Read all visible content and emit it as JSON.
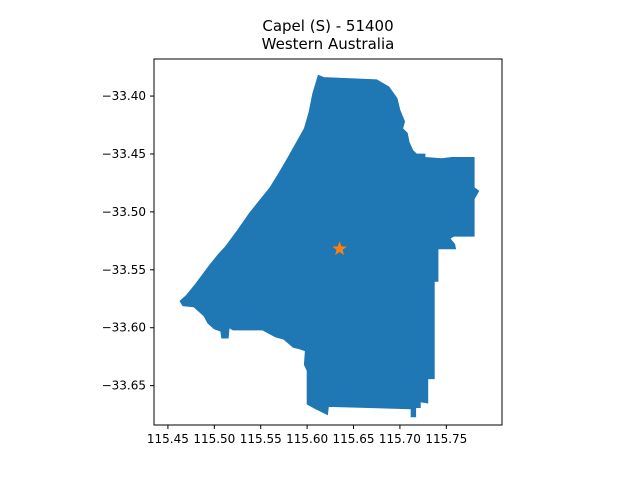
{
  "title": {
    "line1": "Capel (S) - 51400",
    "line2": "Western Australia"
  },
  "chart_data": {
    "type": "map",
    "region_color": "#1f77b4",
    "marker_color": "#ff7f0e",
    "marker_shape": "star",
    "marker_point": {
      "lon": 115.635,
      "lat": -33.532
    },
    "x_ticks": [
      {
        "value": 115.45,
        "label": "115.45"
      },
      {
        "value": 115.5,
        "label": "115.50"
      },
      {
        "value": 115.55,
        "label": "115.55"
      },
      {
        "value": 115.6,
        "label": "115.60"
      },
      {
        "value": 115.65,
        "label": "115.65"
      },
      {
        "value": 115.7,
        "label": "115.70"
      },
      {
        "value": 115.75,
        "label": "115.75"
      }
    ],
    "y_ticks": [
      {
        "value": -33.4,
        "label": "−33.40"
      },
      {
        "value": -33.45,
        "label": "−33.45"
      },
      {
        "value": -33.5,
        "label": "−33.50"
      },
      {
        "value": -33.55,
        "label": "−33.55"
      },
      {
        "value": -33.6,
        "label": "−33.60"
      },
      {
        "value": -33.65,
        "label": "−33.65"
      }
    ],
    "xlim": [
      115.435,
      115.81
    ],
    "ylim": [
      -33.684,
      -33.368
    ],
    "boundary": [
      [
        115.612,
        -33.382
      ],
      [
        115.618,
        -33.384
      ],
      [
        115.675,
        -33.386
      ],
      [
        115.688,
        -33.392
      ],
      [
        115.697,
        -33.402
      ],
      [
        115.7,
        -33.412
      ],
      [
        115.703,
        -33.418
      ],
      [
        115.705,
        -33.422
      ],
      [
        115.703,
        -33.428
      ],
      [
        115.708,
        -33.432
      ],
      [
        115.71,
        -33.44
      ],
      [
        115.714,
        -33.447
      ],
      [
        115.718,
        -33.45
      ],
      [
        115.727,
        -33.45
      ],
      [
        115.727,
        -33.453
      ],
      [
        115.745,
        -33.454
      ],
      [
        115.756,
        -33.453
      ],
      [
        115.78,
        -33.453
      ],
      [
        115.78,
        -33.479
      ],
      [
        115.785,
        -33.482
      ],
      [
        115.78,
        -33.489
      ],
      [
        115.78,
        -33.521
      ],
      [
        115.758,
        -33.521
      ],
      [
        115.754,
        -33.523
      ],
      [
        115.759,
        -33.528
      ],
      [
        115.76,
        -33.532
      ],
      [
        115.741,
        -33.532
      ],
      [
        115.741,
        -33.56
      ],
      [
        115.737,
        -33.56
      ],
      [
        115.737,
        -33.644
      ],
      [
        115.73,
        -33.644
      ],
      [
        115.73,
        -33.665
      ],
      [
        115.722,
        -33.664
      ],
      [
        115.722,
        -33.669
      ],
      [
        115.717,
        -33.669
      ],
      [
        115.717,
        -33.677
      ],
      [
        115.712,
        -33.677
      ],
      [
        115.712,
        -33.67
      ],
      [
        115.623,
        -33.668
      ],
      [
        115.622,
        -33.675
      ],
      [
        115.609,
        -33.67
      ],
      [
        115.6,
        -33.666
      ],
      [
        115.6,
        -33.637
      ],
      [
        115.597,
        -33.632
      ],
      [
        115.598,
        -33.62
      ],
      [
        115.591,
        -33.618
      ],
      [
        115.585,
        -33.617
      ],
      [
        115.575,
        -33.61
      ],
      [
        115.566,
        -33.608
      ],
      [
        115.552,
        -33.602
      ],
      [
        115.52,
        -33.602
      ],
      [
        115.516,
        -33.6
      ],
      [
        115.515,
        -33.609
      ],
      [
        115.508,
        -33.609
      ],
      [
        115.507,
        -33.603
      ],
      [
        115.5,
        -33.601
      ],
      [
        115.493,
        -33.596
      ],
      [
        115.489,
        -33.59
      ],
      [
        115.478,
        -33.582
      ],
      [
        115.466,
        -33.581
      ],
      [
        115.463,
        -33.577
      ],
      [
        115.47,
        -33.572
      ],
      [
        115.48,
        -33.562
      ],
      [
        115.494,
        -33.547
      ],
      [
        115.504,
        -33.537
      ],
      [
        115.512,
        -33.53
      ],
      [
        115.525,
        -33.516
      ],
      [
        115.538,
        -33.501
      ],
      [
        115.55,
        -33.489
      ],
      [
        115.56,
        -33.479
      ],
      [
        115.57,
        -33.466
      ],
      [
        115.578,
        -33.455
      ],
      [
        115.59,
        -33.438
      ],
      [
        115.597,
        -33.428
      ],
      [
        115.602,
        -33.414
      ],
      [
        115.606,
        -33.398
      ]
    ]
  }
}
